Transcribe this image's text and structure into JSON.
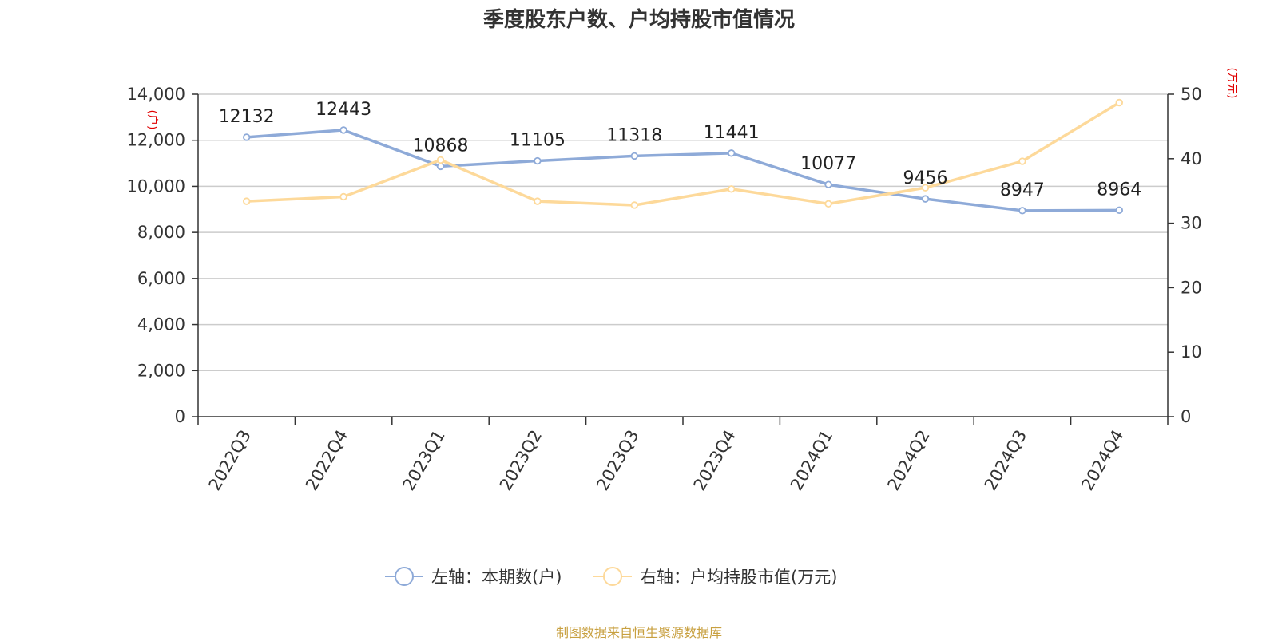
{
  "title": "季度股东户数、户均持股市值情况",
  "source": "制图数据来自恒生聚源数据库",
  "chart_data": {
    "type": "line",
    "title": "季度股东户数、户均持股市值情况",
    "categories": [
      "2022Q3",
      "2022Q4",
      "2023Q1",
      "2023Q2",
      "2023Q3",
      "2023Q4",
      "2024Q1",
      "2024Q2",
      "2024Q3",
      "2024Q4"
    ],
    "left_axis": {
      "unit": "(户)",
      "ylim": [
        0,
        14000
      ],
      "ticks": [
        0,
        2000,
        4000,
        6000,
        8000,
        10000,
        12000,
        14000
      ],
      "tick_labels": [
        "0",
        "2,000",
        "4,000",
        "6,000",
        "8,000",
        "10,000",
        "12,000",
        "14,000"
      ]
    },
    "right_axis": {
      "unit": "(万元)",
      "ylim": [
        0,
        50
      ],
      "ticks": [
        0,
        10,
        20,
        30,
        40,
        50
      ],
      "tick_labels": [
        "0",
        "10",
        "20",
        "30",
        "40",
        "50"
      ]
    },
    "series": [
      {
        "name": "左轴：本期数(户)",
        "axis": "left",
        "color": "#8eaad8",
        "values": [
          12132,
          12443,
          10868,
          11105,
          11318,
          11441,
          10077,
          9456,
          8947,
          8964
        ],
        "labels": [
          "12132",
          "12443",
          "10868",
          "11105",
          "11318",
          "11441",
          "10077",
          "9456",
          "8947",
          "8964"
        ]
      },
      {
        "name": "右轴：户均持股市值(万元)",
        "axis": "right",
        "color": "#fdd99a",
        "values": [
          33.4,
          34.1,
          39.8,
          33.4,
          32.8,
          35.3,
          33.0,
          35.5,
          39.6,
          48.7
        ]
      }
    ],
    "grid": true,
    "legend_position": "bottom-center"
  }
}
